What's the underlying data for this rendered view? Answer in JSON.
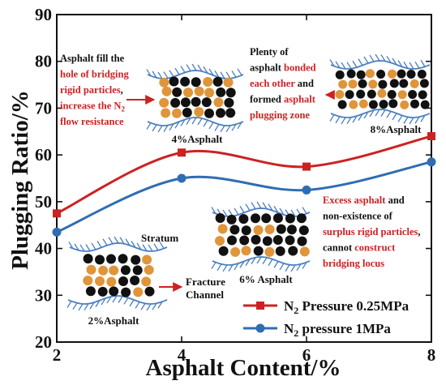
{
  "chart_data": {
    "type": "line",
    "x": [
      2,
      4,
      6,
      8
    ],
    "xlabel": "Asphalt Content/%",
    "ylabel": "Plugging Ratio/%",
    "xlim": [
      2,
      8
    ],
    "ylim": [
      20,
      90
    ],
    "xticks": [
      "2",
      "4",
      "6",
      "8"
    ],
    "yticks": [
      "20",
      "30",
      "40",
      "50",
      "60",
      "70",
      "80",
      "90"
    ],
    "grid": false,
    "legend_position": "bottom-right",
    "series": [
      {
        "name": "N2 Pressure 0.25MPa",
        "legend_main": "N",
        "legend_sub": "2",
        "legend_rest": " Pressure 0.25MPa",
        "color": "#cc2222",
        "marker": "square",
        "values": [
          47.5,
          60.5,
          57.5,
          64.0
        ]
      },
      {
        "name": "N2 pressure 1MPa",
        "legend_main": "N",
        "legend_sub": "2",
        "legend_rest": " pressure 1MPa",
        "color": "#2f6db3",
        "marker": "circle",
        "values": [
          43.5,
          55.0,
          52.5,
          58.5
        ]
      }
    ],
    "annotations": {
      "left_note": [
        [
          {
            "t": "Asphalt fill the",
            "c": "#111111"
          }
        ],
        [
          {
            "t": "hole of bridging",
            "c": "#cc2222"
          }
        ],
        [
          {
            "t": "rigid particles",
            "c": "#cc2222"
          },
          {
            "t": ",",
            "c": "#111111"
          }
        ],
        [
          {
            "t": "increase the N",
            "c": "#cc2222"
          },
          {
            "t": "2",
            "c": "#cc2222",
            "sub": true
          }
        ],
        [
          {
            "t": "flow resistance",
            "c": "#cc2222"
          }
        ]
      ],
      "top_right_note": [
        [
          {
            "t": "Plenty of",
            "c": "#111111"
          }
        ],
        [
          {
            "t": "asphalt ",
            "c": "#111111"
          },
          {
            "t": "bonded",
            "c": "#cc2222"
          }
        ],
        [
          {
            "t": "each other",
            "c": "#cc2222"
          },
          {
            "t": " and",
            "c": "#111111"
          }
        ],
        [
          {
            "t": "formed ",
            "c": "#111111"
          },
          {
            "t": "asphalt",
            "c": "#cc2222"
          }
        ],
        [
          {
            "t": "plugging zone",
            "c": "#cc2222"
          }
        ]
      ],
      "bottom_right_note": [
        [
          {
            "t": "Excess asphalt",
            "c": "#cc2222"
          },
          {
            "t": " and",
            "c": "#111111"
          }
        ],
        [
          {
            "t": "non-existence of",
            "c": "#111111"
          }
        ],
        [
          {
            "t": "surplus rigid particles",
            "c": "#cc2222"
          },
          {
            "t": ",",
            "c": "#111111"
          }
        ],
        [
          {
            "t": "cannot ",
            "c": "#111111"
          },
          {
            "t": "construct",
            "c": "#cc2222"
          }
        ],
        [
          {
            "t": "bridging locus",
            "c": "#cc2222"
          }
        ]
      ],
      "labels": {
        "asphalt_2": "2%Asphalt",
        "asphalt_4": "4%Asphalt",
        "asphalt_6": "6% Asphalt",
        "asphalt_8": "8%Asphalt",
        "stratum": "Stratum",
        "fracture_1": "Fracture",
        "fracture_2": "Channel"
      }
    },
    "colors": {
      "particle_black": "#111111",
      "particle_orange": "#e0953a",
      "stratum_blue": "#4a7fc0",
      "arrow_red": "#cc2222"
    }
  }
}
